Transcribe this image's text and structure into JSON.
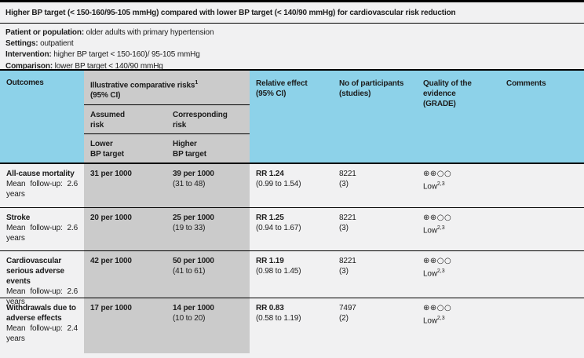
{
  "title": "Higher BP target (< 150-160/95-105 mmHg) compared with lower BP target (< 140/90 mmHg) for cardiovascular risk reduction",
  "info": [
    {
      "label": "Patient or population:",
      "text": " older adults with primary hypertension"
    },
    {
      "label": "Settings:",
      "text": " outpatient"
    },
    {
      "label": "Intervention:",
      "text": " higher BP target < 150-160)/ 95-105 mmHg"
    },
    {
      "label": "Comparison:",
      "text": " lower BP target < 140/90 mmHg"
    }
  ],
  "table": {
    "header": {
      "outcomes": "Outcomes",
      "illustrative": {
        "text": "Illustrative comparative risks",
        "sup": "1",
        "sub": "(95% CI)"
      },
      "assumed_risk": {
        "line1": "Assumed",
        "line2": "risk"
      },
      "corresponding_risk": {
        "line1": "Corresponding",
        "line2": "risk"
      },
      "lower_bp": {
        "line1": "Lower",
        "line2": "BP target"
      },
      "higher_bp": {
        "line1": "Higher",
        "line2": "BP target"
      },
      "relative_effect": {
        "line1": "Relative effect",
        "line2": "(95% CI)"
      },
      "participants": {
        "line1": "No of participants",
        "line2": "(studies)"
      },
      "quality": {
        "line1": "Quality of the evidence",
        "line2": "(GRADE)"
      },
      "comments": "Comments"
    },
    "rows": [
      {
        "outcome": "All-cause mortality",
        "followup": "Mean follow-up: 2.6 years",
        "assumed": "31 per 1000",
        "corresponding": "39 per 1000",
        "corresponding_ci": "(31 to 48)",
        "relative": "RR 1.24",
        "relative_ci": "(0.99 to 1.54)",
        "participants": "8221",
        "studies": "(3)",
        "grade_symbols": "⊕⊕○○",
        "grade_label": "Low",
        "grade_sup": "2,3",
        "comments": ""
      },
      {
        "outcome": "Stroke",
        "followup": "Mean follow-up: 2.6 years",
        "assumed": "20 per 1000",
        "corresponding": "25 per 1000",
        "corresponding_ci": "(19 to 33)",
        "relative": "RR 1.25",
        "relative_ci": "(0.94 to 1.67)",
        "participants": "8221",
        "studies": "(3)",
        "grade_symbols": "⊕⊕○○",
        "grade_label": "Low",
        "grade_sup": "2,3",
        "comments": ""
      },
      {
        "outcome": "Cardiovascular serious adverse events",
        "followup": "Mean follow-up: 2.6 years",
        "assumed": "42 per 1000",
        "corresponding": "50 per 1000",
        "corresponding_ci": "(41 to 61)",
        "relative": "RR 1.19",
        "relative_ci": "(0.98 to 1.45)",
        "participants": "8221",
        "studies": "(3)",
        "grade_symbols": "⊕⊕○○",
        "grade_label": "Low",
        "grade_sup": "2,3",
        "comments": ""
      },
      {
        "outcome": "Withdrawals due to adverse effects",
        "followup": "Mean follow-up: 2.4 years",
        "assumed": "17 per 1000",
        "corresponding": "14 per 1000",
        "corresponding_ci": "(10 to 20)",
        "relative": "RR 0.83",
        "relative_ci": "(0.58 to 1.19)",
        "participants": "7497",
        "studies": "(2)",
        "grade_symbols": "⊕⊕○○",
        "grade_label": "Low",
        "grade_sup": "2,3",
        "comments": ""
      }
    ]
  },
  "colors": {
    "header_blue": "#8DD2E9",
    "shaded_gray": "#CBCBCB",
    "page_background": "#F1F1F2",
    "border": "#000000"
  }
}
